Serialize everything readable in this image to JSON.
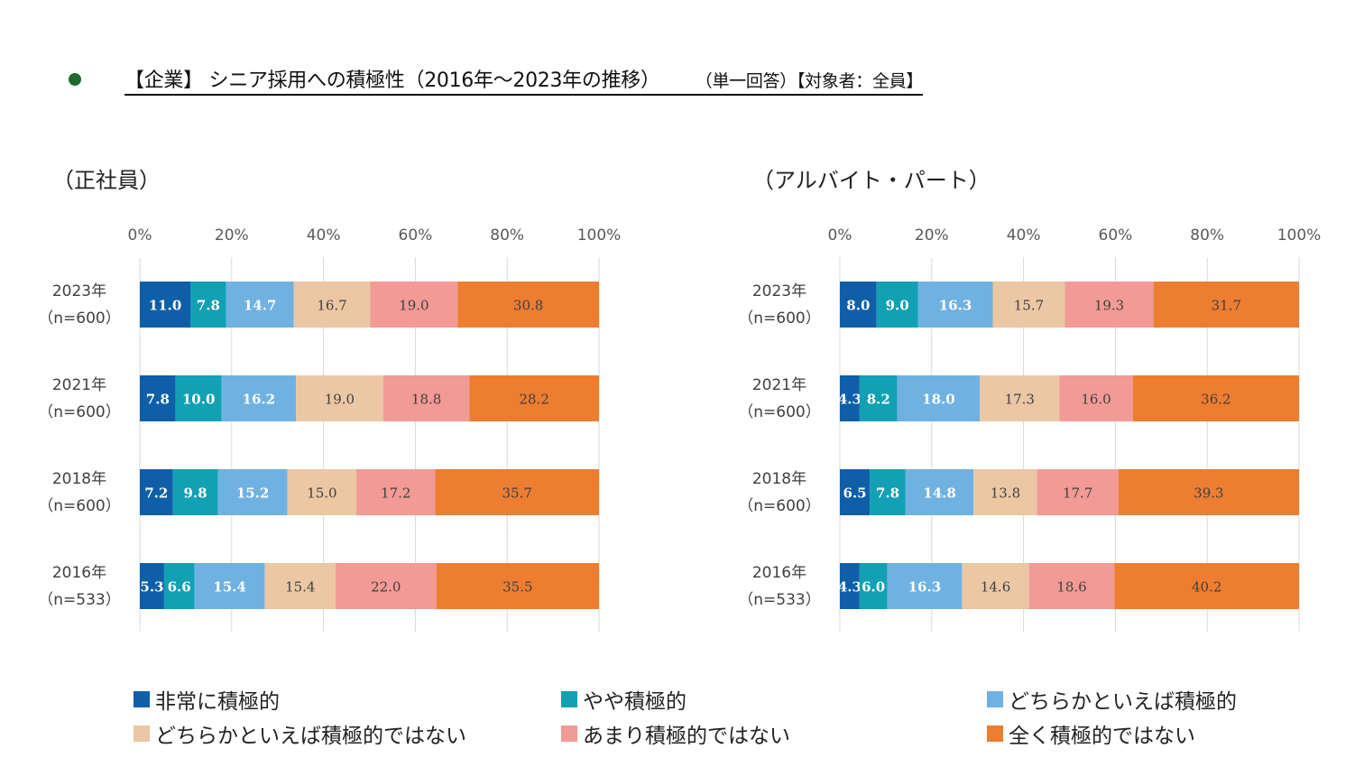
{
  "header": {
    "main": "【企業】 シニア採用への積極性（2016年～2023年の推移）",
    "spacer": "　　 ",
    "sub": "（単一回答）【対象者：全員】"
  },
  "legend_items": [
    {
      "label": "非常に積極的",
      "color": "#0f5fa8"
    },
    {
      "label": "やや積極的",
      "color": "#12a0b4"
    },
    {
      "label": "どちらかといえば積極的",
      "color": "#6fb2e2"
    },
    {
      "label": "どちらかといえば積極的ではない",
      "color": "#ebc7a3"
    },
    {
      "label": "あまり積極的ではない",
      "color": "#f29a95"
    },
    {
      "label": "全く積極的ではない",
      "color": "#ed7d31"
    }
  ],
  "chart_data": [
    {
      "type": "bar",
      "orientation": "horizontal-stacked-100",
      "title": "（正社員）",
      "xticks": [
        "0%",
        "20%",
        "40%",
        "60%",
        "80%",
        "100%"
      ],
      "xlim": [
        0,
        100
      ],
      "categories": [
        {
          "year": "2023年",
          "n": "（n=600）"
        },
        {
          "year": "2021年",
          "n": "（n=600）"
        },
        {
          "year": "2018年",
          "n": "（n=600）"
        },
        {
          "year": "2016年",
          "n": "（n=533）"
        }
      ],
      "series": [
        {
          "name": "非常に積極的",
          "color": "#0f5fa8",
          "label_color": "#ffffff",
          "values": [
            11.0,
            7.8,
            7.2,
            5.3
          ],
          "labels": [
            "11.0",
            "7.8",
            "7.2",
            "5.3"
          ]
        },
        {
          "name": "やや積極的",
          "color": "#12a0b4",
          "label_color": "#ffffff",
          "values": [
            7.8,
            10.0,
            9.8,
            6.6
          ],
          "labels": [
            "7.8",
            "10.0",
            "9.8",
            "6.6"
          ]
        },
        {
          "name": "どちらかといえば積極的",
          "color": "#6fb2e2",
          "label_color": "#ffffff",
          "values": [
            14.7,
            16.2,
            15.2,
            15.4
          ],
          "labels": [
            "14.7",
            "16.2",
            "15.2",
            "15.4"
          ]
        },
        {
          "name": "どちらかといえば積極的ではない",
          "color": "#ebc7a3",
          "label_color": "#404040",
          "values": [
            16.7,
            19.0,
            15.0,
            15.4
          ],
          "labels": [
            "16.7",
            "19.0",
            "15.0",
            "15.4"
          ]
        },
        {
          "name": "あまり積極的ではない",
          "color": "#f29a95",
          "label_color": "#404040",
          "values": [
            19.0,
            18.8,
            17.2,
            22.0
          ],
          "labels": [
            "19.0",
            "18.8",
            "17.2",
            "22.0"
          ]
        },
        {
          "name": "全く積極的ではない",
          "color": "#ed7d31",
          "label_color": "#404040",
          "values": [
            30.8,
            28.2,
            35.7,
            35.5
          ],
          "labels": [
            "30.8",
            "28.2",
            "35.7",
            "35.5"
          ]
        }
      ]
    },
    {
      "type": "bar",
      "orientation": "horizontal-stacked-100",
      "title": "（アルバイト・パート）",
      "xticks": [
        "0%",
        "20%",
        "40%",
        "60%",
        "80%",
        "100%"
      ],
      "xlim": [
        0,
        100
      ],
      "categories": [
        {
          "year": "2023年",
          "n": "（n=600）"
        },
        {
          "year": "2021年",
          "n": "（n=600）"
        },
        {
          "year": "2018年",
          "n": "（n=600）"
        },
        {
          "year": "2016年",
          "n": "（n=533）"
        }
      ],
      "series": [
        {
          "name": "非常に積極的",
          "color": "#0f5fa8",
          "label_color": "#ffffff",
          "values": [
            8.0,
            4.3,
            6.5,
            4.3
          ],
          "labels": [
            "8.0",
            "4.3",
            "6.5",
            "4.3"
          ]
        },
        {
          "name": "やや積極的",
          "color": "#12a0b4",
          "label_color": "#ffffff",
          "values": [
            9.0,
            8.2,
            7.8,
            6.0
          ],
          "labels": [
            "9.0",
            "8.2",
            "7.8",
            "6.0"
          ]
        },
        {
          "name": "どちらかといえば積極的",
          "color": "#6fb2e2",
          "label_color": "#ffffff",
          "values": [
            16.3,
            18.0,
            14.8,
            16.3
          ],
          "labels": [
            "16.3",
            "18.0",
            "14.8",
            "16.3"
          ]
        },
        {
          "name": "どちらかといえば積極的ではない",
          "color": "#ebc7a3",
          "label_color": "#404040",
          "values": [
            15.7,
            17.3,
            13.8,
            14.6
          ],
          "labels": [
            "15.7",
            "17.3",
            "13.8",
            "14.6"
          ]
        },
        {
          "name": "あまり積極的ではない",
          "color": "#f29a95",
          "label_color": "#404040",
          "values": [
            19.3,
            16.0,
            17.7,
            18.6
          ],
          "labels": [
            "19.3",
            "16.0",
            "17.7",
            "18.6"
          ]
        },
        {
          "name": "全く積極的ではない",
          "color": "#ed7d31",
          "label_color": "#404040",
          "values": [
            31.7,
            36.2,
            39.3,
            40.2
          ],
          "labels": [
            "31.7",
            "36.2",
            "39.3",
            "40.2"
          ]
        }
      ]
    }
  ]
}
